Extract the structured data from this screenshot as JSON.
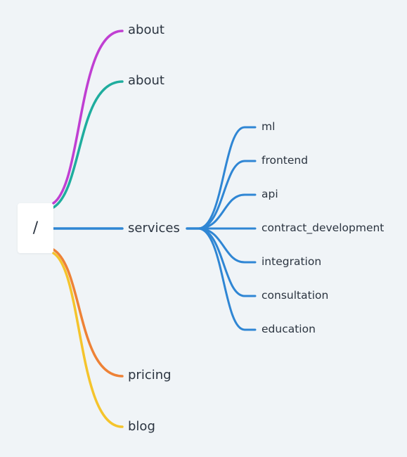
{
  "root": {
    "label": "/"
  },
  "branches": [
    {
      "label": "about",
      "color": "#c03fd2"
    },
    {
      "label": "about",
      "color": "#1fad9e"
    },
    {
      "label": "services",
      "color": "#2f86d4",
      "children": [
        {
          "label": "ml"
        },
        {
          "label": "frontend"
        },
        {
          "label": "api"
        },
        {
          "label": "contract_development"
        },
        {
          "label": "integration"
        },
        {
          "label": "consultation"
        },
        {
          "label": "education"
        }
      ]
    },
    {
      "label": "pricing",
      "color": "#ee8236"
    },
    {
      "label": "blog",
      "color": "#f5c42c"
    }
  ]
}
